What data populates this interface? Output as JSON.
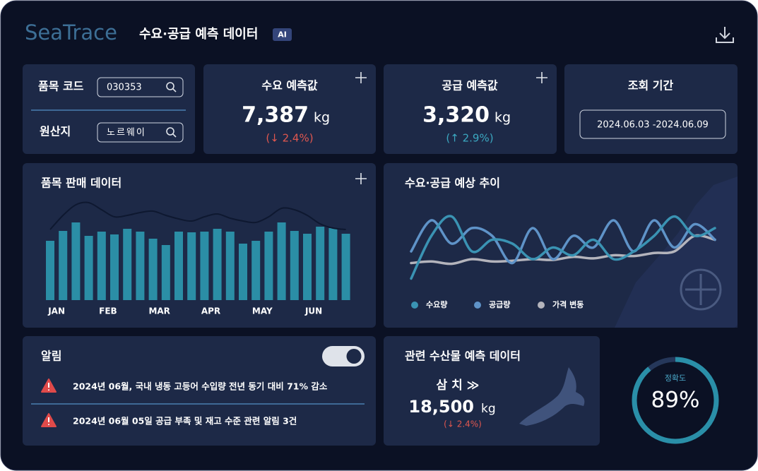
{
  "header": {
    "logo": "SeaTrace",
    "title": "수요·공급 예측 데이터",
    "badge": "AI"
  },
  "search": {
    "code_label": "품목 코드",
    "code": "030353",
    "origin_label": "원산지",
    "origin": "노르웨이"
  },
  "demand": {
    "label": "수요 예측값",
    "value": "7,387",
    "unit": "kg",
    "change": "(↓ 2.4%)"
  },
  "supply": {
    "label": "공급 예측값",
    "value": "3,320",
    "unit": "kg",
    "change": "(↑ 2.9%)"
  },
  "period": {
    "label": "조회 기간",
    "range": "2024.06.03 -2024.06.09"
  },
  "sales_chart": {
    "type": "bar",
    "title": "품목 판매 데이터",
    "categories": [
      "JAN",
      null,
      null,
      null,
      "FEB",
      null,
      null,
      null,
      "MAR",
      null,
      null,
      null,
      "APR",
      null,
      null,
      null,
      "MAY",
      null,
      null,
      null,
      "JUN",
      null,
      null,
      null
    ],
    "values": [
      84,
      98,
      110,
      91,
      97,
      93,
      101,
      97,
      87,
      78,
      97,
      96,
      97,
      101,
      97,
      80,
      84,
      97,
      110,
      98,
      94,
      104,
      102,
      94
    ],
    "color": "#2b8ea6",
    "line": {
      "values": [
        100,
        120,
        135,
        138,
        128,
        118,
        120,
        124,
        126,
        120,
        115,
        112,
        118,
        122,
        116,
        112,
        110,
        118,
        130,
        128,
        120,
        108,
        102,
        100
      ],
      "color": "#0e1830"
    },
    "ylim": [
      0,
      150
    ]
  },
  "trend_chart": {
    "type": "line",
    "title": "수요·공급 예상 추이",
    "series": [
      {
        "name": "수요량",
        "color": "#3a93b3",
        "values": [
          5,
          60,
          85,
          40,
          55,
          50,
          30,
          45,
          35,
          55,
          30,
          40,
          60,
          85,
          60,
          70
        ]
      },
      {
        "name": "공급량",
        "color": "#5f93c8",
        "values": [
          40,
          80,
          50,
          70,
          60,
          25,
          70,
          30,
          60,
          45,
          80,
          40,
          80,
          45,
          75,
          55
        ]
      },
      {
        "name": "가격 변동",
        "color": "#b4b4bc",
        "values": [
          25,
          27,
          24,
          30,
          27,
          28,
          30,
          29,
          33,
          31,
          35,
          34,
          38,
          40,
          60,
          55
        ]
      }
    ],
    "ylim": [
      0,
      100
    ]
  },
  "alerts": {
    "title": "알림",
    "toggle_on": true,
    "items": [
      "2024년 06월, 국내 냉동 고등어 수입량 전년 동기 대비 71% 감소",
      "2024년 06월 05일 공급 부족 및 재고 수준 관련 알림 3건"
    ]
  },
  "related": {
    "title": "관련 수산물 예측 데이터",
    "item": "삼 치 ≫",
    "value": "18,500",
    "unit": "kg",
    "change": "(↓ 2.4%)"
  },
  "accuracy": {
    "label": "정확도",
    "value": 89,
    "value_label": "89%"
  }
}
